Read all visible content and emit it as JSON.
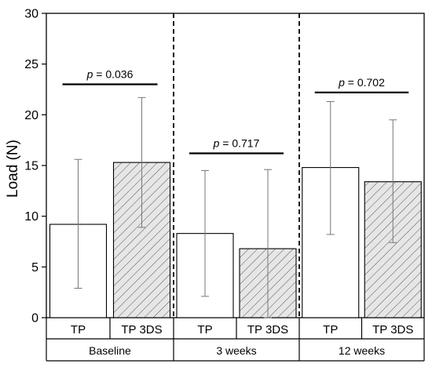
{
  "chart_data": {
    "type": "bar",
    "ylabel": "Load (N)",
    "ylim": [
      0,
      30
    ],
    "yticks": [
      0,
      5,
      10,
      15,
      20,
      25,
      30
    ],
    "grid": false,
    "groups": [
      {
        "label": "Baseline",
        "bars": [
          {
            "category": "TP",
            "value": 9.2,
            "err_low": 2.9,
            "err_high": 15.6,
            "pattern": "solid"
          },
          {
            "category": "TP 3DS",
            "value": 15.3,
            "err_low": 8.9,
            "err_high": 21.7,
            "pattern": "hatched"
          }
        ],
        "p_value": {
          "prefix": "p",
          "text": " = 0.036",
          "y": 23.0
        }
      },
      {
        "label": "3 weeks",
        "bars": [
          {
            "category": "TP",
            "value": 8.3,
            "err_low": 2.1,
            "err_high": 14.5,
            "pattern": "solid"
          },
          {
            "category": "TP 3DS",
            "value": 6.8,
            "err_low": 0.0,
            "err_high": 14.6,
            "pattern": "hatched"
          }
        ],
        "p_value": {
          "prefix": "p",
          "text": " = 0.717",
          "y": 16.2
        }
      },
      {
        "label": "12 weeks",
        "bars": [
          {
            "category": "TP",
            "value": 14.8,
            "err_low": 8.2,
            "err_high": 21.3,
            "pattern": "solid"
          },
          {
            "category": "TP 3DS",
            "value": 13.4,
            "err_low": 7.4,
            "err_high": 19.5,
            "pattern": "hatched"
          }
        ],
        "p_value": {
          "prefix": "p",
          "text": " = 0.702",
          "y": 22.2
        }
      }
    ],
    "colors": {
      "solid_fill": "#ffffff",
      "hatch_fill": "#e6e6e6",
      "hatch_stroke": "#555555",
      "error_bar": "#777777",
      "axis": "#000000"
    }
  }
}
